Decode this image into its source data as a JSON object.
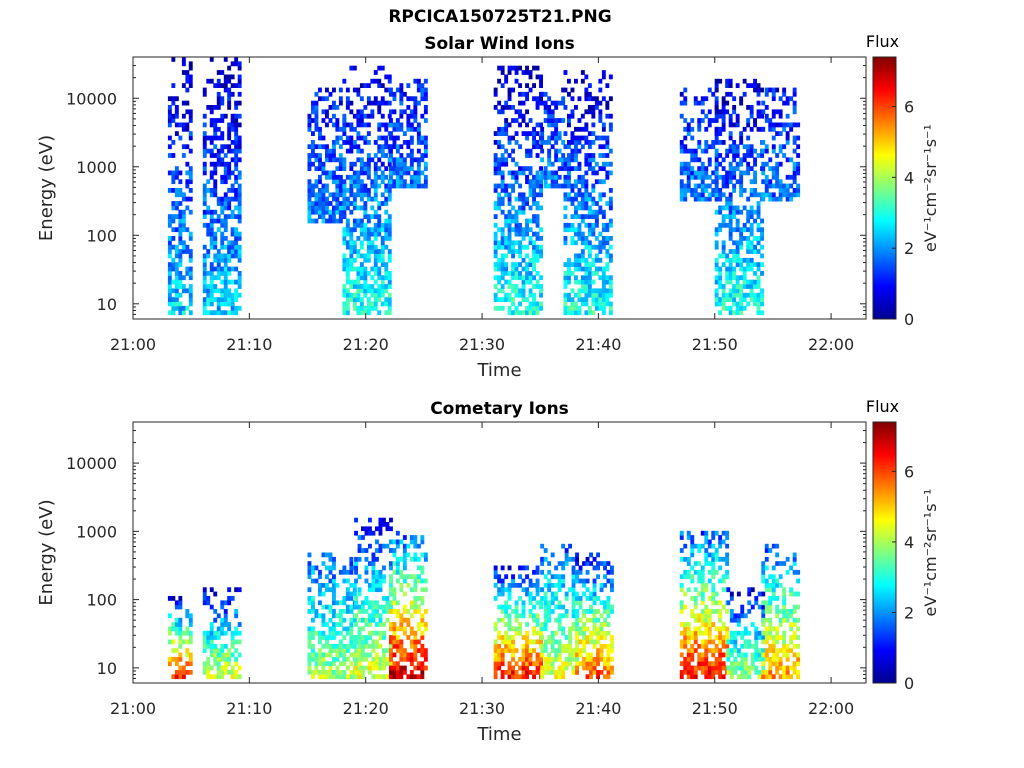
{
  "figure": {
    "filename": "RPCICA150725T21.PNG"
  },
  "colormap": "jet",
  "chart_data": [
    {
      "type": "heatmap",
      "title": "Solar Wind Ions",
      "xlabel": "Time",
      "ylabel": "Energy (eV)",
      "yscale": "log",
      "ylim": [
        6,
        40000
      ],
      "xlim": [
        "21:00",
        "22:03"
      ],
      "xticks": [
        "21:00",
        "21:10",
        "21:20",
        "21:30",
        "21:40",
        "21:50",
        "22:00"
      ],
      "yticks": [
        10,
        100,
        1000,
        10000
      ],
      "ytick_labels": [
        "10",
        "100",
        "1000",
        "10000"
      ],
      "colorbar": {
        "label": "Flux",
        "units": "eV⁻¹cm⁻²sr⁻¹s⁻¹",
        "ticks": [
          0,
          2,
          4,
          6
        ],
        "range": [
          0,
          7.4
        ]
      },
      "bursts": [
        {
          "start": "21:03",
          "end": "21:05",
          "emin": 7,
          "emax": 40000,
          "flux_low": 2.5,
          "flux_high": 0.4
        },
        {
          "start": "21:06",
          "end": "21:09",
          "emin": 7,
          "emax": 40000,
          "flux_low": 2.5,
          "flux_high": 0.4
        },
        {
          "start": "21:15",
          "end": "21:18",
          "emin": 150,
          "emax": 15000,
          "flux_low": 2.0,
          "flux_high": 1.0
        },
        {
          "start": "21:18",
          "end": "21:22",
          "emin": 7,
          "emax": 30000,
          "flux_low": 3.0,
          "flux_high": 0.5
        },
        {
          "start": "21:22",
          "end": "21:25",
          "emin": 500,
          "emax": 20000,
          "flux_low": 1.8,
          "flux_high": 1.0
        },
        {
          "start": "21:31",
          "end": "21:35",
          "emin": 7,
          "emax": 30000,
          "flux_low": 3.0,
          "flux_high": 0.4
        },
        {
          "start": "21:35",
          "end": "21:37",
          "emin": 500,
          "emax": 15000,
          "flux_low": 1.8,
          "flux_high": 1.0
        },
        {
          "start": "21:37",
          "end": "21:41",
          "emin": 7,
          "emax": 25000,
          "flux_low": 3.0,
          "flux_high": 0.4
        },
        {
          "start": "21:47",
          "end": "21:50",
          "emin": 300,
          "emax": 15000,
          "flux_low": 1.8,
          "flux_high": 1.0
        },
        {
          "start": "21:50",
          "end": "21:54",
          "emin": 7,
          "emax": 20000,
          "flux_low": 3.0,
          "flux_high": 0.5
        },
        {
          "start": "21:54",
          "end": "21:57",
          "emin": 300,
          "emax": 15000,
          "flux_low": 1.8,
          "flux_high": 1.0
        }
      ]
    },
    {
      "type": "heatmap",
      "title": "Cometary Ions",
      "xlabel": "Time",
      "ylabel": "Energy (eV)",
      "yscale": "log",
      "ylim": [
        6,
        40000
      ],
      "xlim": [
        "21:00",
        "22:03"
      ],
      "xticks": [
        "21:00",
        "21:10",
        "21:20",
        "21:30",
        "21:40",
        "21:50",
        "22:00"
      ],
      "yticks": [
        10,
        100,
        1000,
        10000
      ],
      "ytick_labels": [
        "10",
        "100",
        "1000",
        "10000"
      ],
      "colorbar": {
        "label": "Flux",
        "units": "eV⁻¹cm⁻²sr⁻¹s⁻¹",
        "ticks": [
          0,
          2,
          4,
          6
        ],
        "range": [
          0,
          7.4
        ]
      },
      "bursts": [
        {
          "start": "21:03",
          "end": "21:05",
          "emin": 7,
          "emax": 130,
          "flux_low": 6.5,
          "flux_high": 0.5
        },
        {
          "start": "21:06",
          "end": "21:09",
          "emin": 7,
          "emax": 170,
          "flux_low": 4.5,
          "flux_high": 0.5
        },
        {
          "start": "21:15",
          "end": "21:19",
          "emin": 7,
          "emax": 500,
          "flux_low": 4.0,
          "flux_high": 1.5
        },
        {
          "start": "21:19",
          "end": "21:22",
          "emin": 7,
          "emax": 1500,
          "flux_low": 4.5,
          "flux_high": 1.0
        },
        {
          "start": "21:22",
          "end": "21:25",
          "emin": 7,
          "emax": 1000,
          "flux_low": 7.0,
          "flux_high": 1.5
        },
        {
          "start": "21:31",
          "end": "21:35",
          "emin": 7,
          "emax": 300,
          "flux_low": 6.5,
          "flux_high": 1.0
        },
        {
          "start": "21:35",
          "end": "21:38",
          "emin": 7,
          "emax": 700,
          "flux_low": 4.5,
          "flux_high": 1.5
        },
        {
          "start": "21:38",
          "end": "21:41",
          "emin": 7,
          "emax": 500,
          "flux_low": 6.0,
          "flux_high": 0.8
        },
        {
          "start": "21:47",
          "end": "21:51",
          "emin": 7,
          "emax": 1000,
          "flux_low": 6.5,
          "flux_high": 1.5
        },
        {
          "start": "21:51",
          "end": "21:54",
          "emin": 7,
          "emax": 150,
          "flux_low": 4.0,
          "flux_high": 0.7
        },
        {
          "start": "21:54",
          "end": "21:57",
          "emin": 7,
          "emax": 700,
          "flux_low": 5.5,
          "flux_high": 1.5
        }
      ]
    }
  ]
}
